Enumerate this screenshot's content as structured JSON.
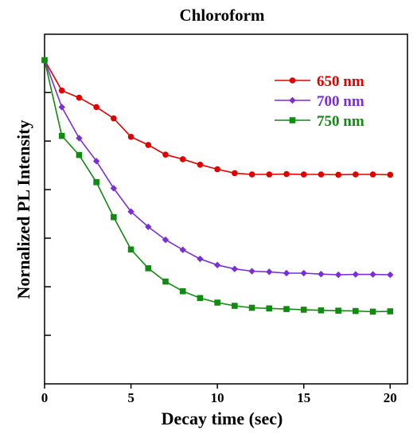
{
  "chart_data": {
    "type": "line",
    "title": "Chloroform",
    "xlabel": "Decay time (sec)",
    "ylabel": "Nornalized PL Intensity",
    "xlim": [
      0,
      21
    ],
    "ylim": [
      0,
      1.08
    ],
    "xticks": [
      0,
      5,
      10,
      15,
      20
    ],
    "y_ticks_unlabeled": [
      0.15,
      0.3,
      0.45,
      0.6,
      0.75,
      0.9
    ],
    "grid": false,
    "legend_position": "top-right",
    "x": [
      0,
      1,
      2,
      3,
      4,
      5,
      6,
      7,
      8,
      9,
      10,
      11,
      12,
      13,
      14,
      15,
      16,
      17,
      18,
      19,
      20
    ],
    "series": [
      {
        "name": "650 nm",
        "color": "#e00000",
        "marker": "circle",
        "values": [
          1.0,
          0.906,
          0.884,
          0.855,
          0.82,
          0.763,
          0.738,
          0.708,
          0.694,
          0.677,
          0.663,
          0.651,
          0.647,
          0.647,
          0.648,
          0.647,
          0.647,
          0.646,
          0.647,
          0.647,
          0.646
        ]
      },
      {
        "name": "700 nm",
        "color": "#7a2fd6",
        "marker": "diamond",
        "values": [
          1.0,
          0.855,
          0.759,
          0.688,
          0.604,
          0.532,
          0.485,
          0.445,
          0.414,
          0.386,
          0.367,
          0.355,
          0.348,
          0.346,
          0.342,
          0.342,
          0.339,
          0.337,
          0.338,
          0.338,
          0.337
        ]
      },
      {
        "name": "750 nm",
        "color": "#118a11",
        "marker": "square",
        "values": [
          1.0,
          0.766,
          0.707,
          0.623,
          0.515,
          0.415,
          0.357,
          0.316,
          0.286,
          0.265,
          0.251,
          0.241,
          0.235,
          0.233,
          0.231,
          0.229,
          0.227,
          0.226,
          0.225,
          0.223,
          0.224
        ]
      }
    ]
  }
}
